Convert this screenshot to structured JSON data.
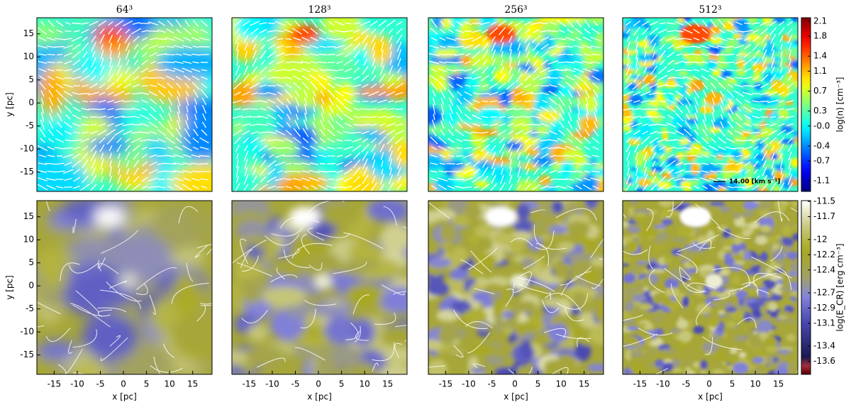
{
  "chart_data": [
    {
      "type": "heatmap",
      "title": "64³",
      "ylabel": "y [pc]",
      "colormap": "jet",
      "xlim": [
        -18.75,
        19.2
      ],
      "ylim": [
        -19.2,
        18.5
      ],
      "yticks": [
        15,
        10,
        5,
        0,
        -5,
        -10,
        -15
      ],
      "vectors": true
    },
    {
      "type": "heatmap",
      "title": "128³",
      "colormap": "jet",
      "xlim": [
        -18.75,
        19.2
      ],
      "ylim": [
        -19.2,
        18.5
      ],
      "vectors": true
    },
    {
      "type": "heatmap",
      "title": "256³",
      "colormap": "jet",
      "xlim": [
        -18.75,
        19.2
      ],
      "ylim": [
        -19.2,
        18.5
      ],
      "vectors": true
    },
    {
      "type": "heatmap",
      "title": "512³",
      "colormap": "jet",
      "xlim": [
        -18.75,
        19.2
      ],
      "ylim": [
        -19.2,
        18.5
      ],
      "vectors": true,
      "annotation": "14.00 [km s⁻¹]",
      "colorbar": {
        "label": "log(n) [cm⁻³]",
        "clim": [
          -1.31,
          2.17
        ],
        "ticks": [
          2.1,
          1.8,
          1.4,
          1.1,
          0.7,
          0.3,
          {
            "value": 0,
            "label": "-0.0"
          },
          -0.4,
          -0.7,
          -1.1
        ]
      }
    },
    {
      "type": "heatmap",
      "xlabel": "x [pc]",
      "ylabel": "y [pc]",
      "colormap": "ecr",
      "xlim": [
        -18.75,
        19.2
      ],
      "ylim": [
        -19.2,
        18.5
      ],
      "xticks": [
        -15,
        -10,
        -5,
        0,
        5,
        10,
        15
      ],
      "yticks": [
        15,
        10,
        5,
        0,
        -5,
        -10,
        -15
      ],
      "streamlines": true
    },
    {
      "type": "heatmap",
      "xlabel": "x [pc]",
      "colormap": "ecr",
      "xlim": [
        -18.75,
        19.2
      ],
      "ylim": [
        -19.2,
        18.5
      ],
      "xticks": [
        -15,
        -10,
        -5,
        0,
        5,
        10,
        15
      ],
      "streamlines": true
    },
    {
      "type": "heatmap",
      "xlabel": "x [pc]",
      "colormap": "ecr",
      "xlim": [
        -18.75,
        19.2
      ],
      "ylim": [
        -19.2,
        18.5
      ],
      "xticks": [
        -15,
        -10,
        -5,
        0,
        5,
        10,
        15
      ],
      "streamlines": true
    },
    {
      "type": "heatmap",
      "xlabel": "x [pc]",
      "colormap": "ecr",
      "xlim": [
        -18.75,
        19.2
      ],
      "ylim": [
        -19.2,
        18.5
      ],
      "xticks": [
        -15,
        -10,
        -5,
        0,
        5,
        10,
        15
      ],
      "streamlines": true,
      "colorbar": {
        "label": "log(E_CR) [erg cm⁻³]",
        "clim": [
          -13.77,
          -11.49
        ],
        "ticks": [
          -11.5,
          -11.7,
          -12.0,
          -12.2,
          -12.4,
          -12.7,
          -12.9,
          -13.1,
          -13.4,
          -13.6
        ]
      }
    }
  ]
}
